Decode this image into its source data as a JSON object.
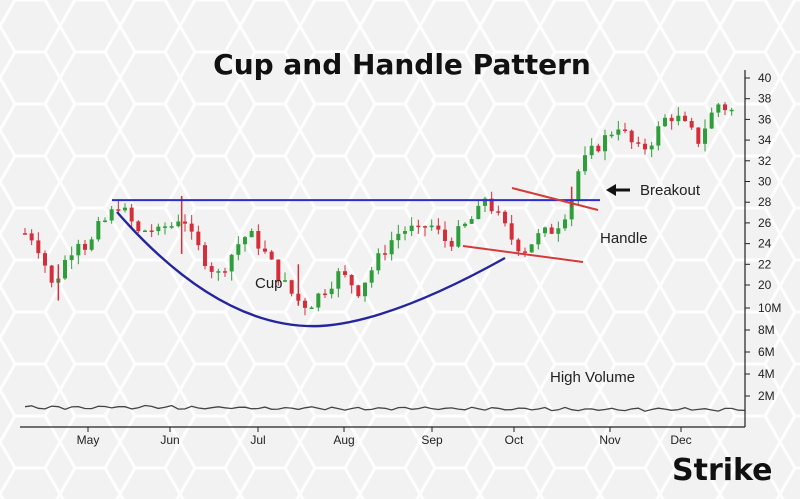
{
  "chart_data": {
    "type": "candlestick",
    "title": "Cup and Handle Pattern",
    "xlabel": "",
    "ylabel": "",
    "price_ylim": [
      18,
      40
    ],
    "price_ticks": [
      "40",
      "38",
      "36",
      "34",
      "32",
      "30",
      "28",
      "26",
      "24",
      "22",
      "20"
    ],
    "volume_ticks": [
      "10M",
      "8M",
      "6M",
      "4M",
      "2M"
    ],
    "volume_ylim": [
      0,
      10
    ],
    "months": [
      "May",
      "Jun",
      "Jul",
      "Aug",
      "Sep",
      "Oct",
      "Nov",
      "Dec"
    ],
    "price_path": [
      [
        0,
        25.0
      ],
      [
        3,
        24.5
      ],
      [
        6,
        22.0
      ],
      [
        8,
        20.0
      ],
      [
        10,
        21.0
      ],
      [
        13,
        23.0
      ],
      [
        16,
        24.5
      ],
      [
        19,
        23.5
      ],
      [
        22,
        25.5
      ],
      [
        25,
        26.5
      ],
      [
        28,
        27.8
      ],
      [
        31,
        26.5
      ],
      [
        34,
        25.0
      ],
      [
        37,
        25.5
      ],
      [
        40,
        25.0
      ],
      [
        43,
        26.0
      ],
      [
        45,
        25.5
      ],
      [
        47,
        27.5
      ],
      [
        49,
        25.0
      ],
      [
        52,
        23.5
      ],
      [
        55,
        22.0
      ],
      [
        58,
        21.0
      ],
      [
        61,
        22.5
      ],
      [
        64,
        24.0
      ],
      [
        67,
        25.0
      ],
      [
        70,
        24.0
      ],
      [
        73,
        22.5
      ],
      [
        76,
        21.0
      ],
      [
        79,
        19.5
      ],
      [
        82,
        18.5
      ],
      [
        85,
        18.0
      ],
      [
        88,
        19.0
      ],
      [
        91,
        20.0
      ],
      [
        94,
        21.0
      ],
      [
        97,
        20.5
      ],
      [
        100,
        19.5
      ],
      [
        103,
        21.0
      ],
      [
        106,
        22.5
      ],
      [
        109,
        24.0
      ],
      [
        112,
        25.0
      ],
      [
        115,
        25.5
      ],
      [
        118,
        25.0
      ],
      [
        121,
        26.0
      ],
      [
        124,
        25.0
      ],
      [
        127,
        24.0
      ],
      [
        130,
        25.0
      ],
      [
        133,
        26.0
      ],
      [
        136,
        27.0
      ],
      [
        138,
        28.5
      ],
      [
        141,
        27.0
      ],
      [
        144,
        25.5
      ],
      [
        147,
        24.0
      ],
      [
        150,
        23.5
      ],
      [
        153,
        24.5
      ],
      [
        156,
        25.0
      ],
      [
        159,
        25.5
      ],
      [
        162,
        27.0
      ],
      [
        164,
        28.5
      ],
      [
        166,
        31.0
      ],
      [
        169,
        32.5
      ],
      [
        172,
        33.5
      ],
      [
        175,
        34.5
      ],
      [
        178,
        35.5
      ],
      [
        181,
        34.0
      ],
      [
        184,
        33.0
      ],
      [
        187,
        33.5
      ],
      [
        190,
        35.0
      ],
      [
        193,
        36.5
      ],
      [
        196,
        36.0
      ],
      [
        199,
        35.0
      ],
      [
        202,
        34.0
      ],
      [
        205,
        36.0
      ],
      [
        208,
        37.5
      ],
      [
        211,
        37.0
      ],
      [
        214,
        36.5
      ]
    ],
    "volume_level": 1.0,
    "pattern_lines": {
      "resistance_price": 28.2,
      "cup_label": "Cup",
      "handle_label": "Handle",
      "breakout_label": "Breakout",
      "volume_label": "High Volume"
    }
  },
  "brand": {
    "logo_text": "Strike",
    "logo_color": "#111111",
    "accent_color": "#1e88e5"
  },
  "colors": {
    "up": "#2e9e3a",
    "down": "#d42e3b",
    "resistance": "#2d2dcf",
    "cup_curve": "#25259c",
    "handle_lines": "#d43a3a",
    "axis": "#222222"
  }
}
